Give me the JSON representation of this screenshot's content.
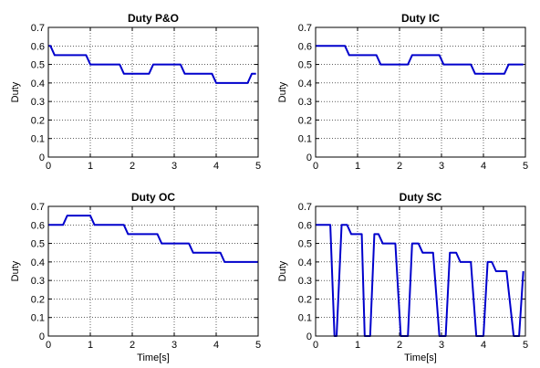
{
  "colors": {
    "series": "#0000cc"
  },
  "chart_data": [
    {
      "type": "line",
      "title": "Duty P&O",
      "xlabel": "",
      "ylabel": "Duty",
      "xlim": [
        0,
        5
      ],
      "ylim": [
        0,
        0.7
      ],
      "xticks": [
        0,
        1,
        2,
        3,
        4,
        5
      ],
      "yticks": [
        0,
        0.1,
        0.2,
        0.3,
        0.4,
        0.5,
        0.6,
        0.7
      ],
      "grid": true,
      "series": [
        {
          "x": [
            0,
            0.05,
            0.15,
            0.9,
            1.0,
            1.7,
            1.8,
            2.4,
            2.5,
            3.15,
            3.25,
            3.9,
            4.0,
            4.75,
            4.85,
            4.95
          ],
          "y": [
            0.6,
            0.6,
            0.55,
            0.55,
            0.5,
            0.5,
            0.45,
            0.45,
            0.5,
            0.5,
            0.45,
            0.45,
            0.4,
            0.4,
            0.45,
            0.45
          ]
        }
      ]
    },
    {
      "type": "line",
      "title": "Duty IC",
      "xlabel": "",
      "ylabel": "Duty",
      "xlim": [
        0,
        5
      ],
      "ylim": [
        0,
        0.7
      ],
      "xticks": [
        0,
        1,
        2,
        3,
        4,
        5
      ],
      "yticks": [
        0,
        0.1,
        0.2,
        0.3,
        0.4,
        0.5,
        0.6,
        0.7
      ],
      "grid": true,
      "series": [
        {
          "x": [
            0,
            0.7,
            0.8,
            1.45,
            1.55,
            2.2,
            2.3,
            2.95,
            3.05,
            3.7,
            3.8,
            4.5,
            4.6,
            4.95
          ],
          "y": [
            0.6,
            0.6,
            0.55,
            0.55,
            0.5,
            0.5,
            0.55,
            0.55,
            0.5,
            0.5,
            0.45,
            0.45,
            0.5,
            0.5
          ]
        }
      ]
    },
    {
      "type": "line",
      "title": "Duty OC",
      "xlabel": "Time[s]",
      "ylabel": "Duty",
      "xlim": [
        0,
        5
      ],
      "ylim": [
        0,
        0.7
      ],
      "xticks": [
        0,
        1,
        2,
        3,
        4,
        5
      ],
      "yticks": [
        0,
        0.1,
        0.2,
        0.3,
        0.4,
        0.5,
        0.6,
        0.7
      ],
      "grid": true,
      "series": [
        {
          "x": [
            0,
            0.35,
            0.45,
            1.0,
            1.1,
            1.8,
            1.9,
            2.6,
            2.7,
            3.35,
            3.45,
            4.1,
            4.2,
            5.0
          ],
          "y": [
            0.6,
            0.6,
            0.65,
            0.65,
            0.6,
            0.6,
            0.55,
            0.55,
            0.5,
            0.5,
            0.45,
            0.45,
            0.4,
            0.4
          ]
        }
      ]
    },
    {
      "type": "line",
      "title": "Duty SC",
      "xlabel": "Time[s]",
      "ylabel": "Duty",
      "xlim": [
        0,
        5
      ],
      "ylim": [
        0,
        0.7
      ],
      "xticks": [
        0,
        1,
        2,
        3,
        4,
        5
      ],
      "yticks": [
        0,
        0.1,
        0.2,
        0.3,
        0.4,
        0.5,
        0.6,
        0.7
      ],
      "grid": true,
      "series": [
        {
          "x": [
            0,
            0.35,
            0.45,
            0.5,
            0.62,
            0.75,
            0.85,
            1.1,
            1.17,
            1.3,
            1.4,
            1.5,
            1.6,
            1.9,
            2.03,
            2.2,
            2.3,
            2.45,
            2.55,
            2.8,
            2.95,
            3.1,
            3.2,
            3.35,
            3.45,
            3.7,
            3.83,
            4.0,
            4.1,
            4.2,
            4.3,
            4.55,
            4.72,
            4.85,
            4.95
          ],
          "y": [
            0.6,
            0.6,
            0.0,
            0.0,
            0.6,
            0.6,
            0.55,
            0.55,
            0.0,
            0.0,
            0.55,
            0.55,
            0.5,
            0.5,
            0.0,
            0.0,
            0.5,
            0.5,
            0.45,
            0.45,
            0.0,
            0.0,
            0.45,
            0.45,
            0.4,
            0.4,
            0.0,
            0.0,
            0.4,
            0.4,
            0.35,
            0.35,
            0.0,
            0.0,
            0.35
          ]
        }
      ]
    }
  ]
}
